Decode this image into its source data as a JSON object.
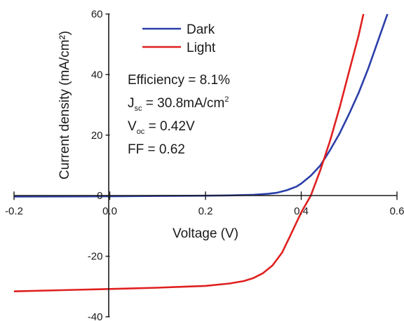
{
  "chart_data": {
    "type": "line",
    "xlabel": "Voltage (V)",
    "ylabel": "Current density (mA/cm²)",
    "xlim": [
      -0.2,
      0.6
    ],
    "ylim": [
      -40,
      60
    ],
    "xticks": [
      -0.2,
      0.0,
      0.2,
      0.4,
      0.6
    ],
    "yticks": [
      -40,
      -20,
      0,
      20,
      40,
      60
    ],
    "xtick_labels": [
      "-0.2",
      "0.0",
      "0.2",
      "0.4",
      "0.6"
    ],
    "ytick_labels": [
      "-40",
      "-20",
      "0",
      "20",
      "40",
      "60"
    ],
    "legend_position": "top-left",
    "grid": false,
    "series": [
      {
        "name": "Dark",
        "color": "#2b3fa8",
        "x": [
          -0.2,
          -0.1,
          0.0,
          0.1,
          0.2,
          0.25,
          0.3,
          0.33,
          0.35,
          0.37,
          0.39,
          0.4,
          0.42,
          0.44,
          0.46,
          0.48,
          0.5,
          0.52,
          0.54,
          0.56,
          0.58
        ],
        "y": [
          -0.3,
          -0.25,
          -0.2,
          -0.1,
          0.0,
          0.1,
          0.3,
          0.6,
          1.0,
          1.8,
          3.0,
          4.0,
          6.6,
          10.0,
          15.0,
          20.5,
          27.0,
          34.0,
          42.0,
          51.0,
          60.0
        ]
      },
      {
        "name": "Light",
        "color": "#e02020",
        "x": [
          -0.2,
          -0.1,
          0.0,
          0.05,
          0.1,
          0.15,
          0.2,
          0.25,
          0.28,
          0.3,
          0.32,
          0.34,
          0.36,
          0.38,
          0.4,
          0.42,
          0.44,
          0.46,
          0.48,
          0.5,
          0.52,
          0.53
        ],
        "y": [
          -31.6,
          -31.2,
          -30.8,
          -30.6,
          -30.4,
          -30.1,
          -29.8,
          -29.0,
          -28.2,
          -27.2,
          -25.6,
          -23.0,
          -18.8,
          -12.2,
          -5.5,
          0.0,
          8.5,
          18.0,
          29.0,
          41.0,
          53.0,
          60.0
        ]
      }
    ],
    "annotations": {
      "efficiency": "Efficiency = 8.1%",
      "jsc_main": "J",
      "jsc_sub": "sc",
      "jsc_value": " = 30.8mA/cm",
      "jsc_sup": "2",
      "voc_main": "V",
      "voc_sub": "oc",
      "voc_value": " = 0.42V",
      "ff": "FF = 0.62"
    }
  }
}
